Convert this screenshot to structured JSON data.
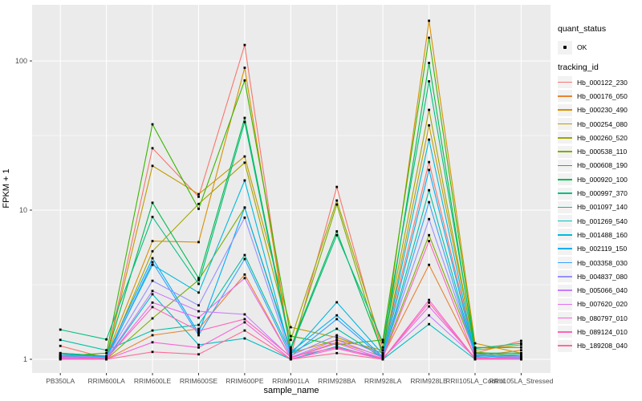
{
  "chart_data": {
    "type": "line",
    "title": "",
    "xlabel": "sample_name",
    "ylabel": "FPKM + 1",
    "x_categories": [
      "PB350LA",
      "RRIM600LA",
      "RRIM600LE",
      "RRIM600SE",
      "RRIM600PE",
      "RRIM901LA",
      "RRIM928BA",
      "RRIM928LA",
      "RRIM928LE",
      "RRII105LA_Control",
      "RRII105LA_Stressed"
    ],
    "y_axis": {
      "scale": "log10",
      "ticks": [
        1,
        10,
        100
      ],
      "tick_labels": [
        "1",
        "10",
        "100"
      ],
      "visible_range": [
        0.81,
        238
      ]
    },
    "legend": {
      "position": "right",
      "quant_status": {
        "title": "quant_status",
        "items": [
          {
            "label": "OK",
            "marker": "black-point"
          }
        ]
      },
      "tracking_id_title": "tracking_id"
    },
    "grid": "on",
    "series": [
      {
        "name": "Hb_000122_230",
        "color": "#F8766D",
        "values": [
          1.23,
          1.02,
          26.0,
          12.3,
          128,
          1.05,
          14.3,
          1.1,
          21.0,
          1.1,
          1.33
        ]
      },
      {
        "name": "Hb_000176_050",
        "color": "#EA8331",
        "values": [
          1.05,
          1.0,
          1.45,
          1.6,
          3.7,
          1.02,
          1.3,
          1.05,
          4.3,
          1.05,
          1.15
        ]
      },
      {
        "name": "Hb_000230_490",
        "color": "#D89000",
        "values": [
          1.1,
          1.05,
          6.2,
          6.1,
          90.0,
          1.1,
          1.35,
          1.15,
          186,
          1.28,
          1.1
        ]
      },
      {
        "name": "Hb_000254_080",
        "color": "#C09B00",
        "values": [
          1.08,
          1.02,
          19.8,
          12.8,
          22.9,
          1.64,
          1.4,
          1.1,
          37.0,
          1.15,
          1.25
        ]
      },
      {
        "name": "Hb_000260_520",
        "color": "#A3A500",
        "values": [
          1.02,
          1.0,
          5.3,
          11.0,
          20.8,
          1.35,
          11.6,
          1.2,
          47.0,
          1.12,
          1.05
        ]
      },
      {
        "name": "Hb_000538_110",
        "color": "#7CAE00",
        "values": [
          1.0,
          1.0,
          1.88,
          3.4,
          10.4,
          1.15,
          10.9,
          1.05,
          6.8,
          1.1,
          1.02
        ]
      },
      {
        "name": "Hb_000608_190",
        "color": "#39B600",
        "values": [
          1.05,
          1.1,
          37.6,
          10.2,
          74.0,
          1.43,
          1.25,
          1.35,
          143,
          1.2,
          1.2
        ]
      },
      {
        "name": "Hb_000920_100",
        "color": "#00BB4E",
        "values": [
          1.1,
          1.05,
          11.2,
          3.5,
          41.5,
          1.2,
          7.2,
          1.1,
          97.0,
          1.1,
          1.1
        ]
      },
      {
        "name": "Hb_000997_370",
        "color": "#00BF7D",
        "values": [
          1.58,
          1.36,
          9.0,
          3.2,
          39.0,
          1.17,
          6.8,
          1.3,
          73.0,
          1.18,
          1.28
        ]
      },
      {
        "name": "Hb_001097_140",
        "color": "#00C1A3",
        "values": [
          1.35,
          1.15,
          1.56,
          1.7,
          5.0,
          1.1,
          1.6,
          1.02,
          13.6,
          1.05,
          1.08
        ]
      },
      {
        "name": "Hb_001269_540",
        "color": "#00BFC4",
        "values": [
          1.02,
          1.0,
          2.73,
          1.25,
          1.38,
          1.0,
          1.22,
          1.0,
          1.72,
          1.0,
          1.02
        ]
      },
      {
        "name": "Hb_001488_160",
        "color": "#00BADE",
        "values": [
          1.05,
          1.02,
          4.3,
          2.8,
          15.8,
          1.08,
          2.41,
          1.08,
          29.7,
          1.08,
          1.05
        ]
      },
      {
        "name": "Hb_002119_150",
        "color": "#00B0F6",
        "values": [
          1.08,
          1.04,
          4.76,
          1.5,
          10.4,
          1.12,
          1.97,
          1.04,
          18.6,
          1.06,
          1.02
        ]
      },
      {
        "name": "Hb_003358_030",
        "color": "#35A2FF",
        "values": [
          1.04,
          1.0,
          4.48,
          1.45,
          4.7,
          1.05,
          1.86,
          1.02,
          11.3,
          1.04,
          1.0
        ]
      },
      {
        "name": "Hb_004837_080",
        "color": "#9590FF",
        "values": [
          1.06,
          1.03,
          3.36,
          2.3,
          8.9,
          1.06,
          1.45,
          1.06,
          8.7,
          1.07,
          1.04
        ]
      },
      {
        "name": "Hb_005066_040",
        "color": "#C77CFF",
        "values": [
          1.03,
          1.01,
          2.87,
          2.1,
          2.0,
          1.03,
          1.35,
          1.03,
          1.97,
          1.03,
          1.01
        ]
      },
      {
        "name": "Hb_007620_020",
        "color": "#E76BF3",
        "values": [
          1.02,
          1.0,
          2.4,
          1.9,
          3.5,
          1.02,
          1.28,
          1.01,
          2.26,
          1.02,
          1.0
        ]
      },
      {
        "name": "Hb_080797_010",
        "color": "#FA62DB",
        "values": [
          1.01,
          1.0,
          1.3,
          1.2,
          1.77,
          1.0,
          1.18,
          1.0,
          2.5,
          1.01,
          1.0
        ]
      },
      {
        "name": "Hb_089124_010",
        "color": "#FF62BC",
        "values": [
          1.04,
          1.01,
          2.24,
          1.55,
          1.86,
          1.04,
          1.2,
          1.02,
          6.2,
          1.02,
          1.03
        ]
      },
      {
        "name": "Hb_189208_040",
        "color": "#FF6A98",
        "values": [
          1.0,
          1.0,
          1.12,
          1.08,
          1.56,
          1.0,
          1.1,
          1.0,
          2.4,
          1.0,
          1.0
        ]
      }
    ]
  },
  "colors": {
    "panel_bg": "#EBEBEB",
    "grid_major": "#FFFFFF",
    "grid_minor": "#F7F7F7",
    "tick_label": "#4D4D4D",
    "tick_mark": "#333333",
    "point": "#000000",
    "legend_key_bg": "#F2F2F2"
  }
}
